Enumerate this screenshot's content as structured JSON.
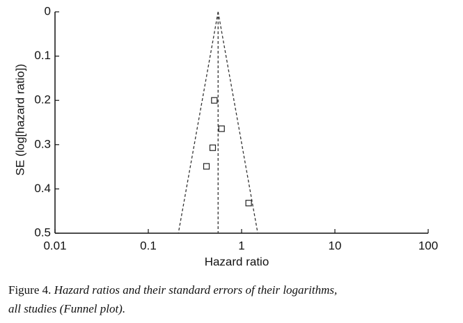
{
  "chart_data": {
    "type": "scatter",
    "xlabel": "Hazard ratio",
    "ylabel": "SE (log[hazard ratio])",
    "log_x": true,
    "y_inverted": true,
    "x": [
      0.51,
      0.61,
      0.49,
      0.42,
      1.19
    ],
    "values": [
      0.2,
      0.264,
      0.307,
      0.349,
      0.432
    ],
    "color": "#222222",
    "xlim": [
      0.01,
      100
    ],
    "xticks": [
      0.01,
      0.1,
      1,
      10,
      100
    ],
    "ylim": [
      0,
      0.5
    ],
    "yticks": [
      0,
      0.1,
      0.2,
      0.3,
      0.4,
      0.5
    ],
    "reference_line": {
      "x": 0.56
    },
    "funnel": {
      "apex": [
        0.56,
        0
      ],
      "lower": [
        0.21,
        0.5
      ],
      "upper": [
        1.49,
        0.5
      ]
    }
  },
  "caption": {
    "label": "Figure 4.",
    "text_line1": "Hazard ratios and their standard errors of their logarithms,",
    "text_line2": "all studies (Funnel plot)."
  }
}
